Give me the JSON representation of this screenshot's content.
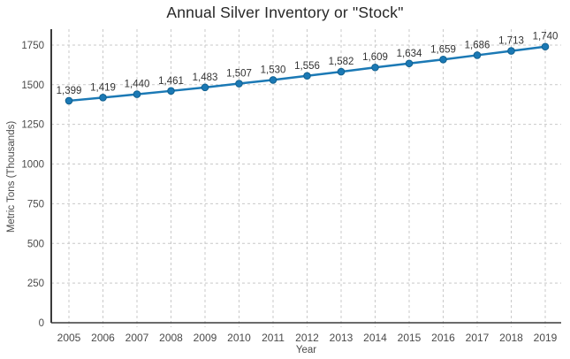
{
  "chart_data": {
    "type": "line",
    "title": "Annual Silver Inventory or \"Stock\"",
    "xlabel": "Year",
    "ylabel": "Metric Tons (Thousands)",
    "categories": [
      "2005",
      "2006",
      "2007",
      "2008",
      "2009",
      "2010",
      "2011",
      "2012",
      "2013",
      "2014",
      "2015",
      "2016",
      "2017",
      "2018",
      "2019"
    ],
    "series": [
      {
        "name": "Annual Silver Inventory",
        "values": [
          1399,
          1419,
          1440,
          1461,
          1483,
          1507,
          1530,
          1556,
          1582,
          1609,
          1634,
          1659,
          1686,
          1713,
          1740
        ]
      }
    ],
    "data_labels_shown": true,
    "yticks": [
      0,
      250,
      500,
      750,
      1000,
      1250,
      1500,
      1750
    ],
    "ylim": [
      0,
      1850
    ],
    "grid": "both-dashed",
    "legend_position": "none",
    "colors": {
      "line": "#1b79b5",
      "marker_fill": "#1b79b5",
      "marker_stroke": "#11608f",
      "axis": "#3a3a3a",
      "grid": "#c9c9c9",
      "tick_text": "#4a4a4a",
      "data_label_text": "#333333",
      "title_text": "#262626"
    }
  }
}
